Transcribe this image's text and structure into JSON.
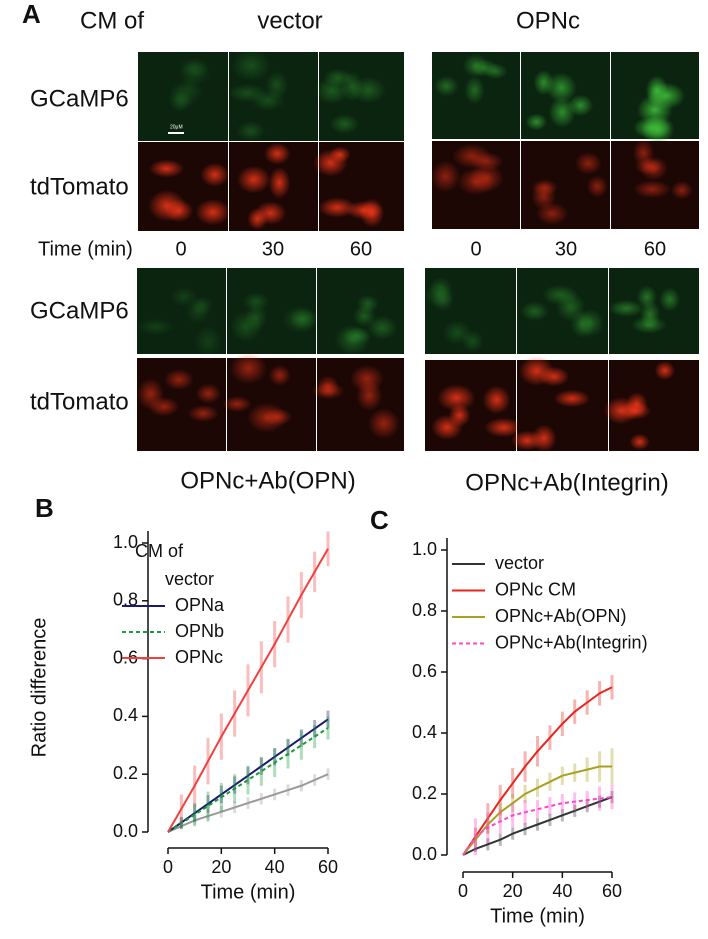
{
  "panel_a": {
    "letter": "A",
    "cm_of": "CM of",
    "vector": "vector",
    "opnc": "OPNc",
    "top_rows": [
      "GCaMP6",
      "tdTomato"
    ],
    "time_label": "Time (min)",
    "times_left": [
      "0",
      "30",
      "60"
    ],
    "times_right": [
      "0",
      "30",
      "60"
    ],
    "bottom_rows": [
      "GCaMP6",
      "tdTomato"
    ],
    "scale_bar": "20μM",
    "bottom_left": "OPNc+Ab(OPN)",
    "bottom_right": "OPNc+Ab(Integrin)"
  },
  "chart_data": [
    {
      "type": "line",
      "letter": "B",
      "ylabel": "Ratio difference",
      "xlabel": "Time (min)",
      "legend_title": "CM of",
      "x": [
        0,
        5,
        10,
        15,
        20,
        25,
        30,
        35,
        40,
        45,
        50,
        55,
        60
      ],
      "xlim": [
        0,
        60
      ],
      "xticks": [
        0,
        20,
        40,
        60
      ],
      "ylim": [
        0,
        1.0
      ],
      "yticks": [
        {
          "value": 0,
          "label": "0.0"
        },
        0.2,
        0.4,
        0.6,
        0.8,
        {
          "value": 1.0,
          "label": "1.0"
        }
      ],
      "series": [
        {
          "name": "vector",
          "color": "#9a9a9a",
          "dashed": false,
          "values": [
            0,
            0.02,
            0.04,
            0.055,
            0.07,
            0.085,
            0.1,
            0.115,
            0.13,
            0.145,
            0.16,
            0.18,
            0.2
          ],
          "errors": [
            0,
            0.01,
            0.015,
            0.02,
            0.02,
            0.02,
            0.02,
            0.02,
            0.02,
            0.02,
            0.02,
            0.02,
            0.02
          ]
        },
        {
          "name": "OPNa",
          "color": "#1a1a6e",
          "dashed": false,
          "values": [
            0,
            0.0325,
            0.065,
            0.0975,
            0.13,
            0.1625,
            0.195,
            0.2275,
            0.26,
            0.2925,
            0.325,
            0.3575,
            0.39
          ],
          "errors": [
            0,
            0.02,
            0.03,
            0.03,
            0.03,
            0.03,
            0.03,
            0.03,
            0.03,
            0.03,
            0.03,
            0.03,
            0.03
          ]
        },
        {
          "name": "OPNb",
          "color": "#1a9a3a",
          "dashed": true,
          "values": [
            0,
            0.03,
            0.06,
            0.09,
            0.12,
            0.15,
            0.18,
            0.21,
            0.24,
            0.27,
            0.3,
            0.33,
            0.36
          ],
          "errors": [
            0,
            0.02,
            0.04,
            0.05,
            0.05,
            0.05,
            0.05,
            0.05,
            0.05,
            0.05,
            0.05,
            0.04,
            0.04
          ]
        },
        {
          "name": "OPNc",
          "color": "#f04040",
          "dashed": false,
          "values": [
            0,
            0.08,
            0.16,
            0.245,
            0.33,
            0.41,
            0.49,
            0.57,
            0.65,
            0.735,
            0.82,
            0.9,
            0.98
          ],
          "errors": [
            0,
            0.05,
            0.07,
            0.08,
            0.08,
            0.08,
            0.09,
            0.09,
            0.08,
            0.08,
            0.08,
            0.07,
            0.06
          ]
        }
      ]
    },
    {
      "type": "line",
      "letter": "C",
      "xlabel": "Time (min)",
      "x": [
        0,
        5,
        10,
        15,
        20,
        25,
        30,
        35,
        40,
        45,
        50,
        55,
        60
      ],
      "xlim": [
        0,
        60
      ],
      "xticks": [
        0,
        20,
        40,
        60
      ],
      "ylim": [
        0,
        1.0
      ],
      "yticks": [
        {
          "value": 0,
          "label": "0.0"
        },
        0.2,
        0.4,
        0.6,
        0.8,
        {
          "value": 1.0,
          "label": "1.0"
        }
      ],
      "series": [
        {
          "name": "vector",
          "color": "#333333",
          "dashed": false,
          "values": [
            0,
            0.02,
            0.035,
            0.05,
            0.07,
            0.085,
            0.1,
            0.115,
            0.13,
            0.145,
            0.16,
            0.175,
            0.19
          ],
          "errors": [
            0,
            0.01,
            0.02,
            0.02,
            0.02,
            0.02,
            0.02,
            0.02,
            0.02,
            0.02,
            0.02,
            0.02,
            0.02
          ]
        },
        {
          "name": "OPNc CM",
          "color": "#e8241e",
          "dashed": false,
          "values": [
            0,
            0.06,
            0.12,
            0.18,
            0.235,
            0.29,
            0.34,
            0.385,
            0.43,
            0.47,
            0.5,
            0.53,
            0.55
          ],
          "errors": [
            0,
            0.03,
            0.05,
            0.05,
            0.05,
            0.05,
            0.05,
            0.04,
            0.04,
            0.04,
            0.04,
            0.04,
            0.04
          ]
        },
        {
          "name": "OPNc+Ab(OPN)",
          "color": "#a8a020",
          "dashed": false,
          "values": [
            0,
            0.05,
            0.1,
            0.14,
            0.17,
            0.2,
            0.22,
            0.24,
            0.26,
            0.27,
            0.28,
            0.29,
            0.29
          ],
          "errors": [
            0,
            0.02,
            0.03,
            0.03,
            0.03,
            0.03,
            0.03,
            0.03,
            0.03,
            0.03,
            0.04,
            0.05,
            0.06
          ]
        },
        {
          "name": "OPNc+Ab(Integrin)",
          "color": "#ff44cc",
          "dashed": true,
          "values": [
            0,
            0.06,
            0.09,
            0.11,
            0.13,
            0.14,
            0.15,
            0.16,
            0.17,
            0.175,
            0.18,
            0.185,
            0.19
          ],
          "errors": [
            0,
            0.06,
            0.05,
            0.04,
            0.04,
            0.04,
            0.03,
            0.03,
            0.03,
            0.03,
            0.03,
            0.04,
            0.04
          ]
        }
      ]
    }
  ]
}
